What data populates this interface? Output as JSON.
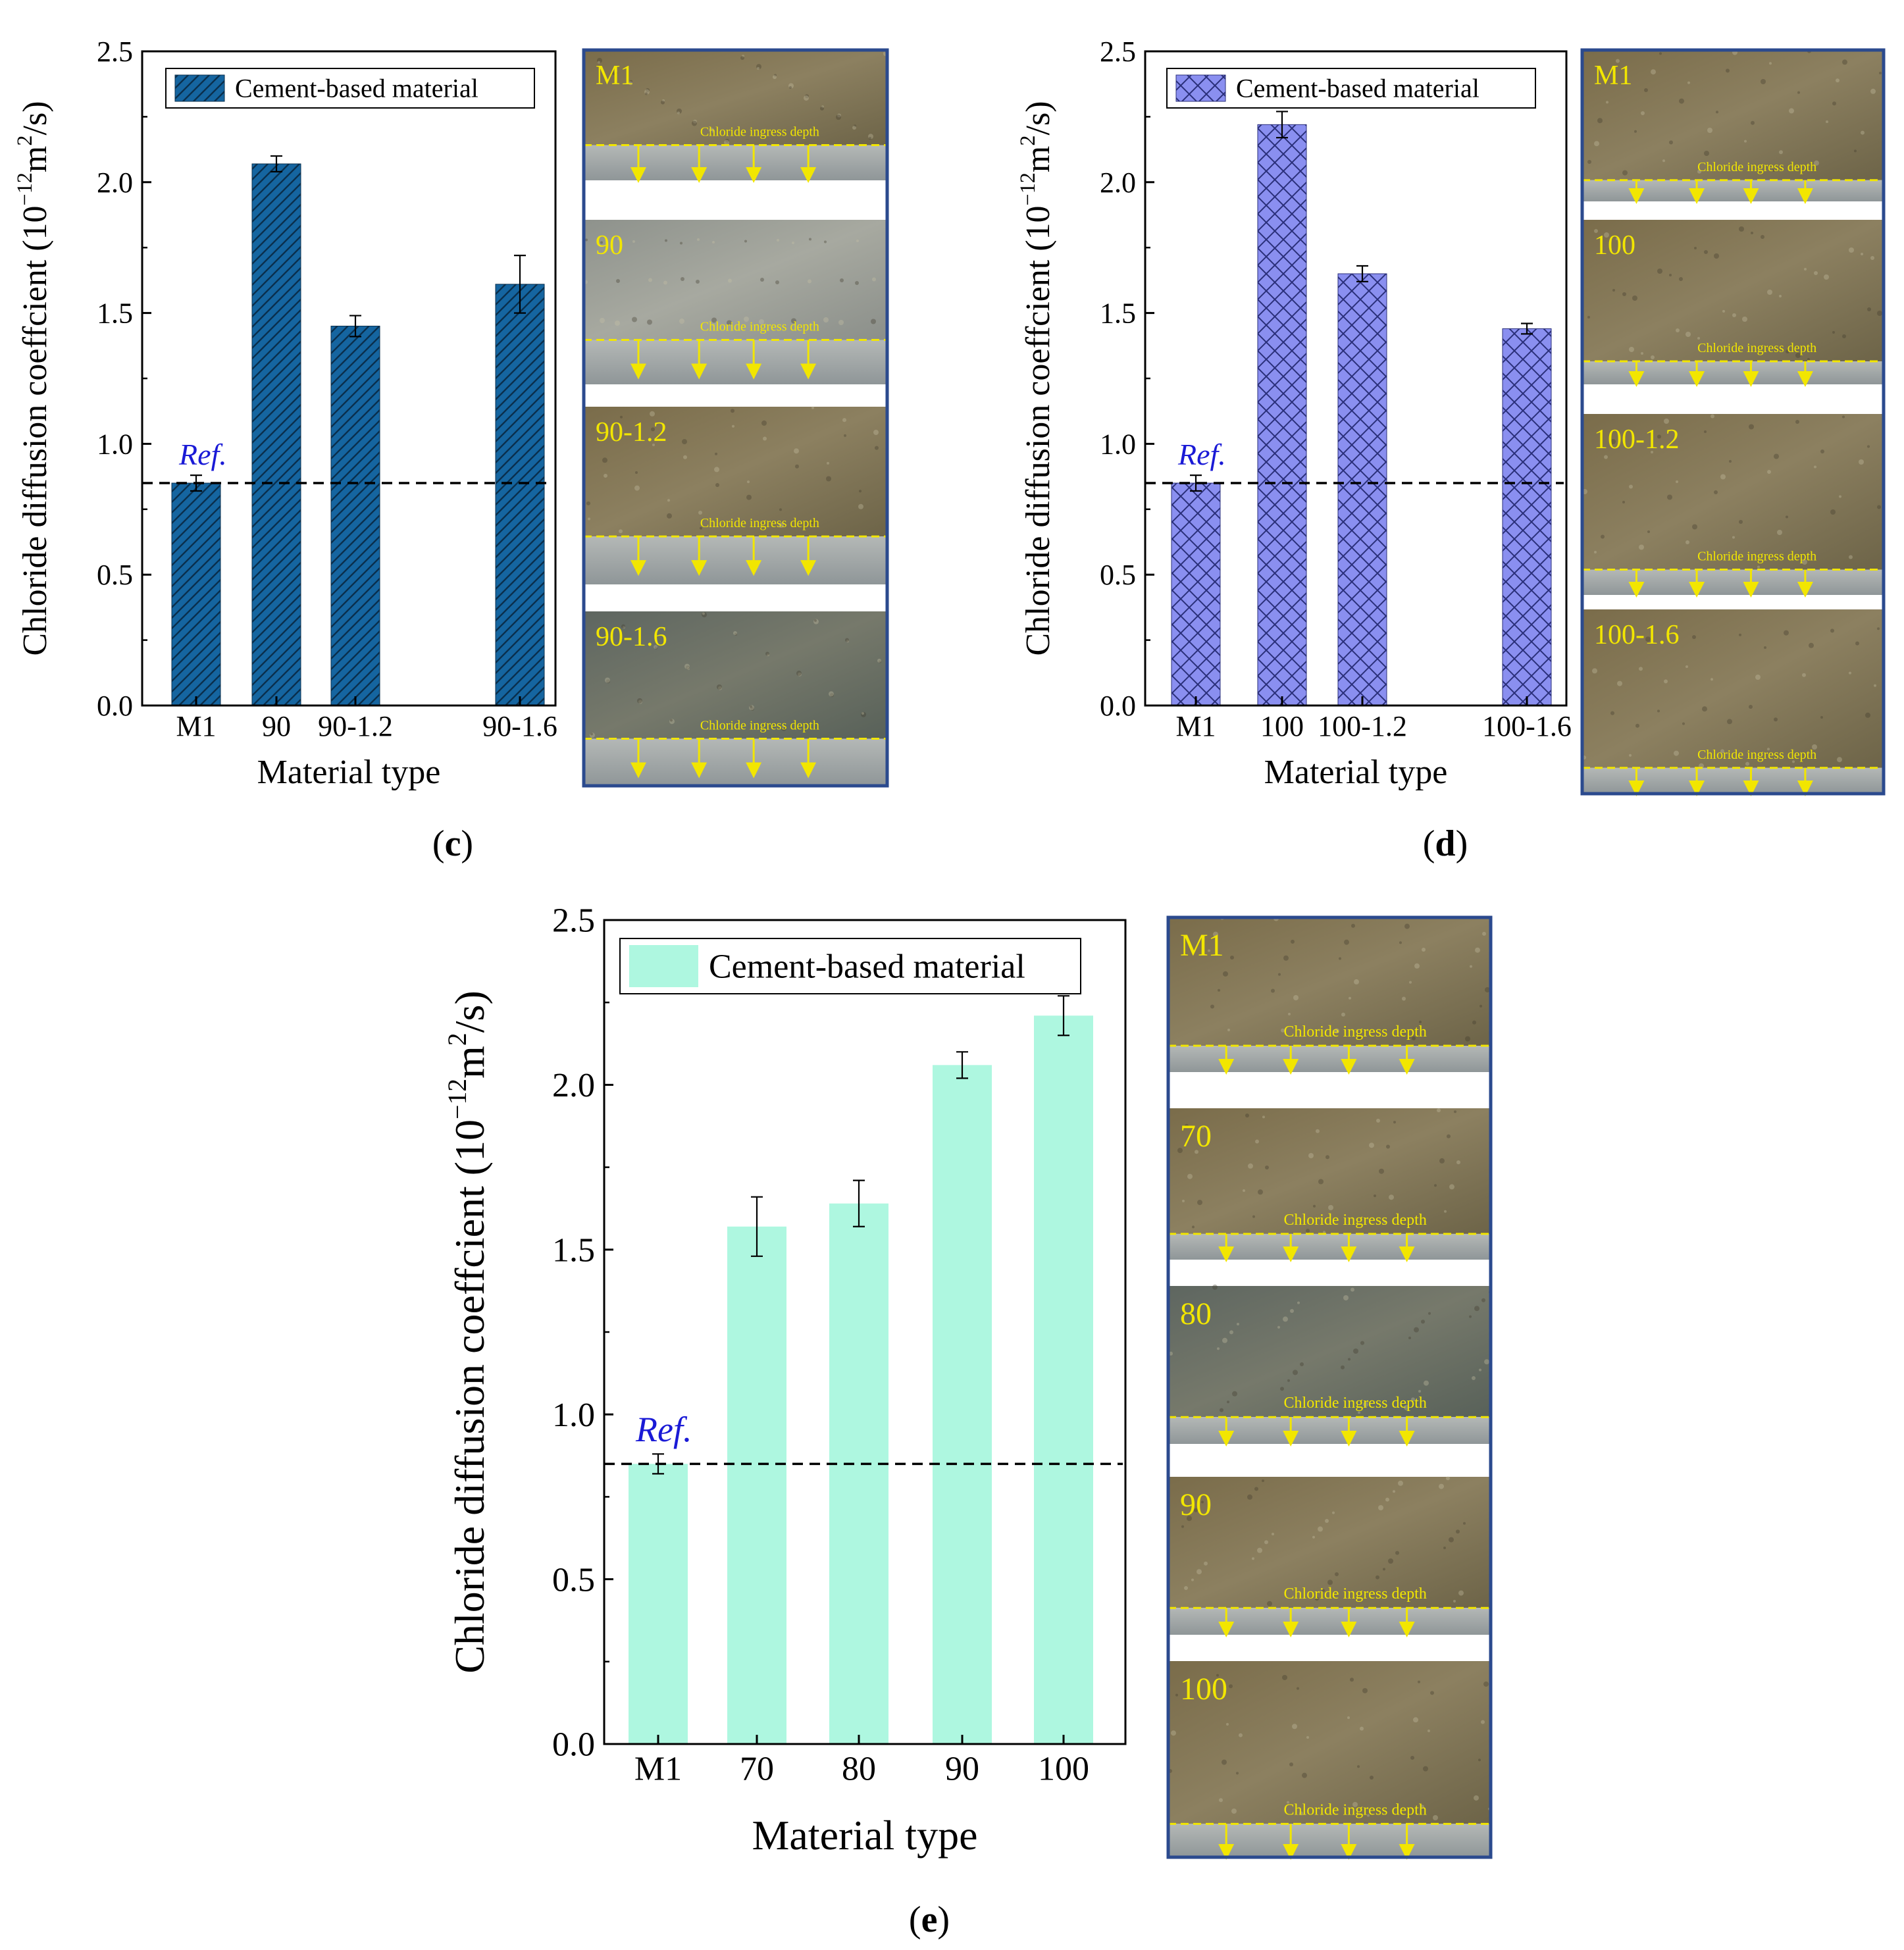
{
  "figure": {
    "panels": [
      {
        "letter": "c",
        "label_open": "(",
        "label_close": ")"
      },
      {
        "letter": "d",
        "label_open": "(",
        "label_close": ")"
      },
      {
        "letter": "e",
        "label_open": "(",
        "label_close": ")"
      }
    ],
    "photo_labels": [
      {
        "panel": "c",
        "rows": [
          "M1",
          "90",
          "90-1.2",
          "90-1.6"
        ]
      },
      {
        "panel": "d",
        "rows": [
          "M1",
          "100",
          "100-1.2",
          "100-1.6"
        ]
      },
      {
        "panel": "e",
        "rows": [
          "M1",
          "70",
          "80",
          "90",
          "100"
        ]
      }
    ],
    "ingress_caption": "Chloride ingress depth"
  },
  "chart_data": [
    {
      "panel": "c",
      "type": "bar",
      "categories": [
        "M1",
        "90",
        "90-1.2",
        "90-1.6"
      ],
      "values": [
        0.85,
        2.07,
        1.45,
        1.61
      ],
      "errors": [
        0.03,
        0.03,
        0.04,
        0.11
      ],
      "ylabel_main": "Chloride diffusion coeffcient (10",
      "ylabel_exp": "−12",
      "ylabel_unit": "m",
      "ylabel_unit_exp": "2",
      "ylabel_tail": "/s)",
      "xlabel": "Material type",
      "ylim": [
        0,
        2.5
      ],
      "yticks": [
        "0.0",
        "0.5",
        "1.0",
        "1.5",
        "2.0",
        "2.5"
      ],
      "legend": "Cement-based material",
      "legend_position": "top-left",
      "reference_line": {
        "value": 0.85,
        "label": "Ref."
      },
      "color": "#1565a0",
      "fill_pattern": "diagonal-hatch"
    },
    {
      "panel": "d",
      "type": "bar",
      "categories": [
        "M1",
        "100",
        "100-1.2",
        "100-1.6"
      ],
      "values": [
        0.85,
        2.22,
        1.65,
        1.44
      ],
      "errors": [
        0.03,
        0.05,
        0.03,
        0.02
      ],
      "ylabel_main": "Chloride diffusion coeffcient (10",
      "ylabel_exp": "−12",
      "ylabel_unit": "m",
      "ylabel_unit_exp": "2",
      "ylabel_tail": "/s)",
      "xlabel": "Material type",
      "ylim": [
        0,
        2.5
      ],
      "yticks": [
        "0.0",
        "0.5",
        "1.0",
        "1.5",
        "2.0",
        "2.5"
      ],
      "legend": "Cement-based material",
      "legend_position": "top-right",
      "reference_line": {
        "value": 0.85,
        "label": "Ref."
      },
      "color": "#8a8ff0",
      "fill_pattern": "cross-hatch"
    },
    {
      "panel": "e",
      "type": "bar",
      "categories": [
        "M1",
        "70",
        "80",
        "90",
        "100"
      ],
      "values": [
        0.85,
        1.57,
        1.64,
        2.06,
        2.21
      ],
      "errors": [
        0.03,
        0.09,
        0.07,
        0.04,
        0.06
      ],
      "ylabel_main": "Chloride diffusion coeffcient (10",
      "ylabel_exp": "−12",
      "ylabel_unit": "m",
      "ylabel_unit_exp": "2",
      "ylabel_tail": "/s)",
      "xlabel": "Material type",
      "ylim": [
        0,
        2.5
      ],
      "yticks": [
        "0.0",
        "0.5",
        "1.0",
        "1.5",
        "2.0",
        "2.5"
      ],
      "legend": "Cement-based material",
      "legend_position": "top-left",
      "reference_line": {
        "value": 0.85,
        "label": "Ref."
      },
      "color": "#aef7e0",
      "fill_pattern": "solid"
    }
  ],
  "colors": {
    "photo_frame": "#2b4a8e",
    "ingress_line": "#f2e600",
    "reference_label": "#1a1ad6",
    "concrete_top_dark": "#6e6446",
    "concrete_top_light": "#8f8668",
    "concrete_gray": "#9fa3a2",
    "concrete_bottom": "#a9b0b2"
  }
}
